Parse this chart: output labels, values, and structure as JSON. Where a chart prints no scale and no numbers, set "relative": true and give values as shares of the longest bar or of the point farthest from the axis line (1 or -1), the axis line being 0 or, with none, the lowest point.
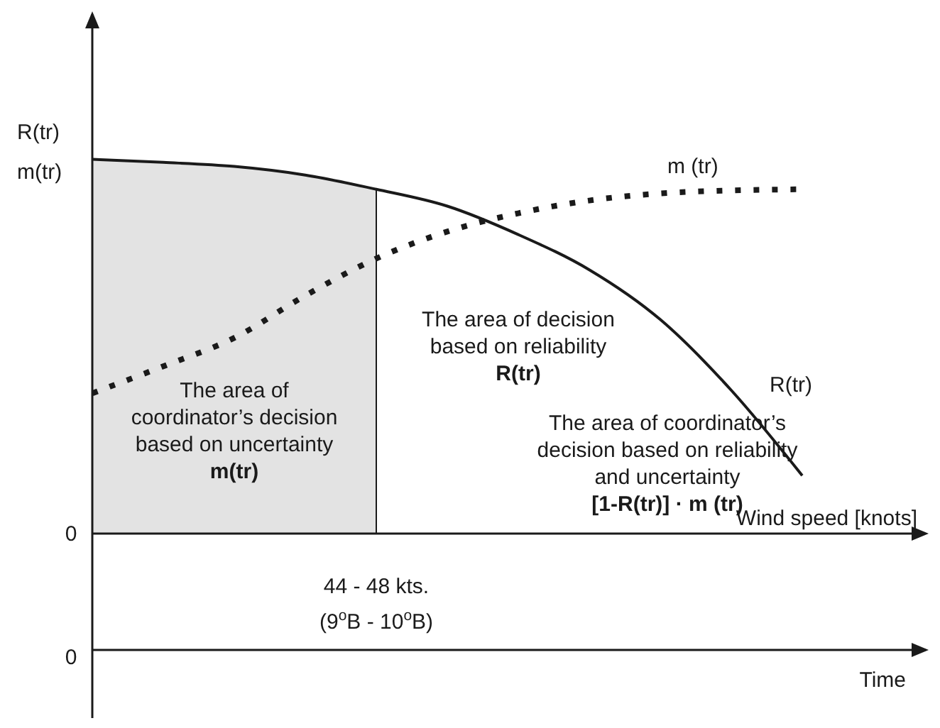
{
  "chart_data": {
    "type": "line",
    "relative": true,
    "ylabel": "R(tr)\nm(tr)",
    "xlabel": "Wind speed [knots]",
    "categories": [
      null,
      null,
      null,
      null,
      null,
      null,
      null,
      null,
      null,
      null,
      null
    ],
    "marker": "none",
    "series": [
      {
        "name": "R(tr)",
        "color": "#1a1a1a",
        "line_style": "solid",
        "values": [
          1,
          0.992,
          0.981,
          0.958,
          0.92,
          0.875,
          0.799,
          0.705,
          0.572,
          0.383,
          0.155
        ]
      },
      {
        "name": "m (tr)",
        "color": "#1a1a1a",
        "line_style": "dotted",
        "values": [
          0.375,
          0.447,
          0.523,
          0.636,
          0.735,
          0.807,
          0.856,
          0.89,
          0.909,
          0.917,
          0.92
        ]
      }
    ],
    "annotations": [
      "The area of\ncoordinator’s decision\nbased on uncertainty\nm(tr)",
      "The area of decision\nbased on reliability\nR(tr)",
      "The area of coordinator’s\ndecision based on reliability\nand uncertainty\n[1-R(tr)] · m (tr)",
      "0",
      "0",
      "Time",
      "44 - 48 kts.\n(9$^{o}$B - 10$^{o}$B)"
    ]
  }
}
